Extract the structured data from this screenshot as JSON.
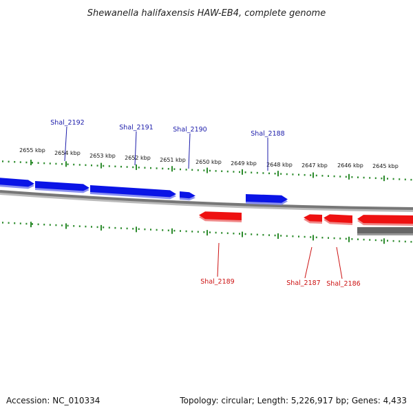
{
  "title": "Shewanella halifaxensis HAW-EB4, complete genome",
  "footer": {
    "accession": "Accession: NC_010334",
    "summary": "Topology: circular; Length: 5,226,917 bp; Genes: 4,433"
  },
  "colors": {
    "forward_gene": "#0a14e6",
    "reverse_gene": "#ee1111",
    "backbone": "#777777",
    "ticks": "#2a8a2a",
    "forward_label": "#1a1aaa",
    "reverse_label": "#cc1111"
  },
  "kbp_ticks": [
    {
      "label": "2655 kbp"
    },
    {
      "label": "2654 kbp"
    },
    {
      "label": "2653 kbp"
    },
    {
      "label": "2652 kbp"
    },
    {
      "label": "2651 kbp"
    },
    {
      "label": "2650 kbp"
    },
    {
      "label": "2649 kbp"
    },
    {
      "label": "2648 kbp"
    },
    {
      "label": "2647 kbp"
    },
    {
      "label": "2646 kbp"
    },
    {
      "label": "2645 kbp"
    }
  ],
  "genes": [
    {
      "name": "Shal_2192",
      "strand": "forward"
    },
    {
      "name": "Shal_2191",
      "strand": "forward"
    },
    {
      "name": "Shal_2190",
      "strand": "forward"
    },
    {
      "name": "Shal_2189",
      "strand": "reverse"
    },
    {
      "name": "Shal_2188",
      "strand": "forward"
    },
    {
      "name": "Shal_2187",
      "strand": "reverse"
    },
    {
      "name": "Shal_2186",
      "strand": "reverse"
    }
  ]
}
